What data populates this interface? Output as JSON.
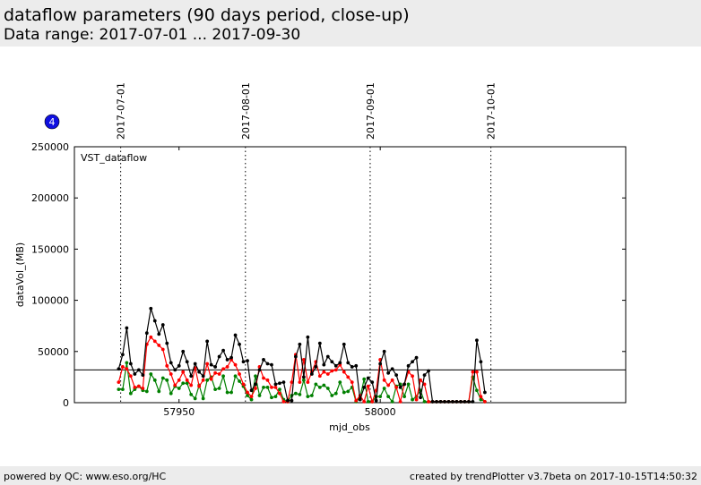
{
  "header": {
    "title": "dataflow parameters (90 days period, close-up)",
    "subtitle": "Data range: 2017-07-01 ... 2017-09-30"
  },
  "footer": {
    "left": "powered by QC: www.eso.org/HC",
    "right": "created by trendPlotter v3.7beta on 2017-10-15T14:50:32"
  },
  "badge": {
    "text": "4",
    "color": "#1010e0"
  },
  "chart_data": {
    "type": "line",
    "panel_label": "VST_dataflow",
    "xlabel": "mjd_obs",
    "ylabel": "dataVol_(MB)",
    "xlim": [
      57924,
      58061
    ],
    "ylim": [
      0,
      250000
    ],
    "xticks": [
      57950,
      58000
    ],
    "yticks": [
      0,
      50000,
      100000,
      150000,
      200000,
      250000
    ],
    "date_markers": [
      {
        "x": 57935.5,
        "label": "2017-07-01"
      },
      {
        "x": 57966.5,
        "label": "2017-08-01"
      },
      {
        "x": 57997.5,
        "label": "2017-09-01"
      },
      {
        "x": 58027.5,
        "label": "2017-10-01"
      }
    ],
    "reference_line": 32000,
    "colors": {
      "black": "#000000",
      "red": "#ff0000",
      "green": "#008000"
    },
    "series": [
      {
        "color": "#000000",
        "x": [
          57935.0,
          57936.0,
          57937.0,
          57938.0,
          57939.0,
          57940.0,
          57941.0,
          57942.0,
          57943.0,
          57944.0,
          57945.0,
          57946.0,
          57947.0,
          57948.0,
          57949.0,
          57950.0,
          57951.0,
          57952.0,
          57953.0,
          57954.0,
          57955.0,
          57956.0,
          57957.0,
          57958.0,
          57959.0,
          57960.0,
          57961.0,
          57962.0,
          57963.0,
          57964.0,
          57965.0,
          57966.0,
          57967.0,
          57968.0,
          57969.0,
          57970.0,
          57971.0,
          57972.0,
          57973.0,
          57974.0,
          57975.0,
          57976.0,
          57977.0,
          57978.0,
          57979.0,
          57980.0,
          57981.0,
          57982.0,
          57983.0,
          57984.0,
          57985.0,
          57986.0,
          57987.0,
          57988.0,
          57989.0,
          57990.0,
          57991.0,
          57992.0,
          57993.0,
          57994.0,
          57995.0,
          57996.0,
          57997.0,
          57998.0,
          57999.0,
          58000.0,
          58001.0,
          58002.0,
          58003.0,
          58004.0,
          58005.0,
          58006.0,
          58007.0,
          58008.0,
          58009.0,
          58010.0,
          58011.0,
          58012.0,
          58013.0,
          58014.0,
          58015.0,
          58016.0,
          58017.0,
          58018.0,
          58019.0,
          58020.0,
          58021.0,
          58022.0,
          58023.0,
          58024.0,
          58025.0,
          58026.0
        ],
        "y": [
          33000,
          47000,
          73000,
          38000,
          28000,
          32000,
          27000,
          68000,
          92000,
          80000,
          67000,
          76000,
          58000,
          39000,
          32000,
          36000,
          50000,
          40000,
          26000,
          38000,
          30000,
          26000,
          60000,
          37000,
          35000,
          45000,
          51000,
          42000,
          44000,
          66000,
          57000,
          40000,
          41000,
          12000,
          18000,
          32000,
          42000,
          38000,
          37000,
          18000,
          19000,
          20000,
          2000,
          2000,
          45000,
          57000,
          25000,
          64000,
          28000,
          35000,
          58000,
          37000,
          45000,
          40000,
          36000,
          39000,
          57000,
          39000,
          35000,
          36000,
          3000,
          15000,
          24000,
          20000,
          2000,
          38000,
          50000,
          29000,
          33000,
          27000,
          15000,
          18000,
          36000,
          40000,
          44000,
          5000,
          27000,
          31000,
          1000,
          1000,
          1000,
          1000,
          1000,
          1000,
          1000,
          1000,
          1000,
          1000,
          1000,
          61000,
          40000,
          10000
        ]
      },
      {
        "color": "#ff0000",
        "x": [
          57935.0,
          57936.0,
          57937.0,
          57938.0,
          57939.0,
          57940.0,
          57941.0,
          57942.0,
          57943.0,
          57944.0,
          57945.0,
          57946.0,
          57947.0,
          57948.0,
          57949.0,
          57950.0,
          57951.0,
          57952.0,
          57953.0,
          57954.0,
          57955.0,
          57956.0,
          57957.0,
          57958.0,
          57959.0,
          57960.0,
          57961.0,
          57962.0,
          57963.0,
          57964.0,
          57965.0,
          57966.0,
          57967.0,
          57968.0,
          57969.0,
          57970.0,
          57971.0,
          57972.0,
          57973.0,
          57974.0,
          57975.0,
          57976.0,
          57977.0,
          57978.0,
          57979.0,
          57980.0,
          57981.0,
          57982.0,
          57983.0,
          57984.0,
          57985.0,
          57986.0,
          57987.0,
          57988.0,
          57989.0,
          57990.0,
          57991.0,
          57992.0,
          57993.0,
          57994.0,
          57995.0,
          57996.0,
          57997.0,
          57998.0,
          57999.0,
          58000.0,
          58001.0,
          58002.0,
          58003.0,
          58004.0,
          58005.0,
          58006.0,
          58007.0,
          58008.0,
          58009.0,
          58010.0,
          58011.0,
          58012.0,
          58013.0,
          58014.0,
          58015.0,
          58016.0,
          58017.0,
          58018.0,
          58019.0,
          58020.0,
          58021.0,
          58022.0,
          58023.0,
          58024.0,
          58025.0,
          58026.0
        ],
        "y": [
          20000,
          35000,
          33000,
          26000,
          15000,
          16000,
          14000,
          57000,
          64000,
          60000,
          56000,
          52000,
          36000,
          28000,
          17000,
          22000,
          30000,
          22000,
          17000,
          34000,
          16000,
          22000,
          38000,
          23000,
          29000,
          28000,
          33000,
          35000,
          42000,
          37000,
          28000,
          18000,
          10000,
          6000,
          14000,
          35000,
          24000,
          22000,
          15000,
          15000,
          9000,
          1000,
          1000,
          20000,
          47000,
          20000,
          42000,
          20000,
          30000,
          40000,
          26000,
          30000,
          28000,
          31000,
          32000,
          37000,
          30000,
          25000,
          20000,
          2000,
          7000,
          1000,
          16000,
          1000,
          12000,
          42000,
          22000,
          17000,
          22000,
          15000,
          1000,
          18000,
          30000,
          26000,
          3000,
          22000,
          18000,
          1000,
          1000,
          1000,
          1000,
          1000,
          1000,
          1000,
          1000,
          1000,
          1000,
          1000,
          30000,
          30000,
          6000,
          1000
        ]
      },
      {
        "color": "#008000",
        "x": [
          57935.0,
          57936.0,
          57937.0,
          57938.0,
          57939.0,
          57940.0,
          57941.0,
          57942.0,
          57943.0,
          57944.0,
          57945.0,
          57946.0,
          57947.0,
          57948.0,
          57949.0,
          57950.0,
          57951.0,
          57952.0,
          57953.0,
          57954.0,
          57955.0,
          57956.0,
          57957.0,
          57958.0,
          57959.0,
          57960.0,
          57961.0,
          57962.0,
          57963.0,
          57964.0,
          57965.0,
          57966.0,
          57967.0,
          57968.0,
          57969.0,
          57970.0,
          57971.0,
          57972.0,
          57973.0,
          57974.0,
          57975.0,
          57976.0,
          57977.0,
          57978.0,
          57979.0,
          57980.0,
          57981.0,
          57982.0,
          57983.0,
          57984.0,
          57985.0,
          57986.0,
          57987.0,
          57988.0,
          57989.0,
          57990.0,
          57991.0,
          57992.0,
          57993.0,
          57994.0,
          57995.0,
          57996.0,
          57997.0,
          57998.0,
          57999.0,
          58000.0,
          58001.0,
          58002.0,
          58003.0,
          58004.0,
          58005.0,
          58006.0,
          58007.0,
          58008.0,
          58009.0,
          58010.0,
          58011.0,
          58012.0,
          58013.0,
          58014.0,
          58015.0,
          58016.0,
          58017.0,
          58018.0,
          58019.0,
          58020.0,
          58021.0,
          58022.0,
          58023.0,
          58024.0,
          58025.0,
          58026.0
        ],
        "y": [
          13000,
          13000,
          39000,
          9000,
          13000,
          16000,
          12000,
          11000,
          28000,
          22000,
          11000,
          24000,
          22000,
          9000,
          16000,
          14000,
          19000,
          19000,
          8000,
          4000,
          17000,
          4000,
          22000,
          25000,
          13000,
          14000,
          26000,
          10000,
          10000,
          26000,
          21000,
          16000,
          7000,
          3000,
          26000,
          7000,
          15000,
          15000,
          5000,
          6000,
          13000,
          3000,
          1000,
          7000,
          9000,
          8000,
          22000,
          6000,
          7000,
          18000,
          15000,
          17000,
          14000,
          7000,
          9000,
          20000,
          10000,
          11000,
          15000,
          1000,
          5000,
          23000,
          1000,
          1000,
          6000,
          6000,
          14000,
          6000,
          1000,
          16000,
          18000,
          6000,
          18000,
          3000,
          6000,
          12000,
          1000,
          1000,
          1000,
          1000,
          1000,
          1000,
          1000,
          1000,
          1000,
          1000,
          1000,
          1000,
          25000,
          12000,
          3000,
          1000
        ]
      }
    ]
  }
}
